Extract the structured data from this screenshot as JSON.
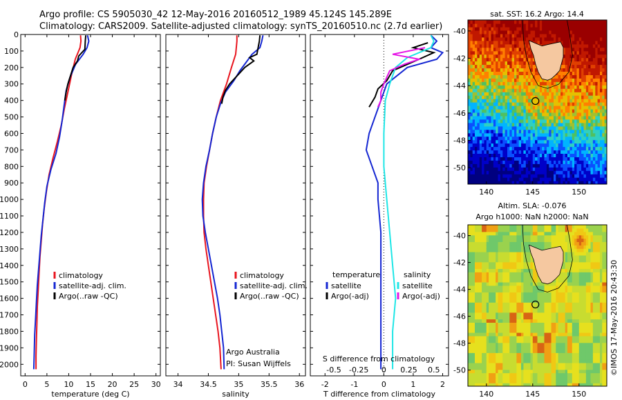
{
  "header": {
    "line1": "Argo profile: CS 5905030_42 12-May-2016 20160512_1989 45.124S 145.289E",
    "line2": "Climatology: CARS2009. Satellite-adjusted climatology: synTS_20160510.nc (2.7d earlier)"
  },
  "side_text": "©IMOS 17-May-2016 20:43:30",
  "colors": {
    "climatology": "#e8141e",
    "satellite": "#1426d2",
    "argo": "#000000",
    "sal_satellite": "#1ee6e6",
    "sal_argo": "#e614e6",
    "land": "#f5c8a0"
  },
  "chart_data": [
    {
      "type": "line",
      "panel": "temperature",
      "xlabel": "temperature (deg C)",
      "xlim": [
        -1,
        31
      ],
      "xticks": [
        0,
        5,
        10,
        15,
        20,
        25,
        30
      ],
      "ylim": [
        2070,
        0
      ],
      "yticks": [
        0,
        100,
        200,
        300,
        400,
        500,
        600,
        700,
        800,
        900,
        1000,
        1100,
        1200,
        1300,
        1400,
        1500,
        1600,
        1700,
        1800,
        1900,
        2000
      ],
      "legend": [
        "climatology",
        "satellite-adj. clim.",
        "Argo(..raw -QC)"
      ],
      "series": [
        {
          "name": "climatology",
          "color": "climatology",
          "points": [
            [
              12.7,
              5
            ],
            [
              12.8,
              40
            ],
            [
              12.6,
              80
            ],
            [
              11.5,
              150
            ],
            [
              10.6,
              250
            ],
            [
              9.8,
              350
            ],
            [
              9.0,
              450
            ],
            [
              8.3,
              550
            ],
            [
              7.4,
              650
            ],
            [
              6.4,
              750
            ],
            [
              5.5,
              850
            ],
            [
              4.9,
              950
            ],
            [
              4.4,
              1050
            ],
            [
              4.0,
              1150
            ],
            [
              3.7,
              1250
            ],
            [
              3.4,
              1350
            ],
            [
              3.2,
              1450
            ],
            [
              3.0,
              1550
            ],
            [
              2.8,
              1650
            ],
            [
              2.7,
              1750
            ],
            [
              2.6,
              1850
            ],
            [
              2.5,
              1950
            ],
            [
              2.5,
              2030
            ]
          ]
        },
        {
          "name": "satellite",
          "color": "satellite",
          "points": [
            [
              14.3,
              5
            ],
            [
              14.6,
              40
            ],
            [
              14.2,
              80
            ],
            [
              13.3,
              120
            ],
            [
              11.6,
              180
            ],
            [
              10.3,
              260
            ],
            [
              9.4,
              340
            ],
            [
              9.0,
              420
            ],
            [
              8.5,
              520
            ],
            [
              7.9,
              620
            ],
            [
              7.1,
              720
            ],
            [
              5.9,
              820
            ],
            [
              5.0,
              920
            ],
            [
              4.5,
              1020
            ],
            [
              4.1,
              1120
            ],
            [
              3.7,
              1220
            ],
            [
              3.4,
              1320
            ],
            [
              3.1,
              1420
            ],
            [
              2.8,
              1520
            ],
            [
              2.6,
              1620
            ],
            [
              2.4,
              1720
            ],
            [
              2.2,
              1820
            ],
            [
              2.1,
              1920
            ],
            [
              2.0,
              2030
            ]
          ]
        },
        {
          "name": "argo",
          "color": "argo",
          "points": [
            [
              13.9,
              5
            ],
            [
              13.8,
              40
            ],
            [
              13.7,
              90
            ],
            [
              12.3,
              130
            ],
            [
              12.0,
              160
            ],
            [
              11.0,
              200
            ],
            [
              10.4,
              250
            ],
            [
              9.8,
              300
            ],
            [
              9.4,
              350
            ],
            [
              9.1,
              400
            ]
          ]
        }
      ]
    },
    {
      "type": "line",
      "panel": "salinity",
      "xlabel": "salinity",
      "xlim": [
        33.8,
        36.1
      ],
      "xticks": [
        34,
        34.5,
        35,
        35.5,
        36
      ],
      "ylim": [
        2070,
        0
      ],
      "legend": [
        "climatology",
        "satellite-adj. clim.",
        "Argo(..raw -QC)"
      ],
      "annotation": [
        "Argo Australia",
        "PI: Susan Wijffels"
      ],
      "series": [
        {
          "name": "climatology",
          "color": "climatology",
          "points": [
            [
              34.97,
              5
            ],
            [
              34.97,
              40
            ],
            [
              34.96,
              80
            ],
            [
              34.95,
              120
            ],
            [
              34.88,
              200
            ],
            [
              34.8,
              300
            ],
            [
              34.7,
              400
            ],
            [
              34.63,
              500
            ],
            [
              34.57,
              600
            ],
            [
              34.52,
              700
            ],
            [
              34.47,
              800
            ],
            [
              34.43,
              900
            ],
            [
              34.42,
              1000
            ],
            [
              34.42,
              1100
            ],
            [
              34.43,
              1200
            ],
            [
              34.46,
              1300
            ],
            [
              34.5,
              1400
            ],
            [
              34.54,
              1500
            ],
            [
              34.58,
              1600
            ],
            [
              34.62,
              1700
            ],
            [
              34.66,
              1800
            ],
            [
              34.69,
              1900
            ],
            [
              34.71,
              2030
            ]
          ]
        },
        {
          "name": "satellite",
          "color": "satellite",
          "points": [
            [
              35.4,
              5
            ],
            [
              35.38,
              40
            ],
            [
              35.35,
              80
            ],
            [
              35.22,
              120
            ],
            [
              35.1,
              180
            ],
            [
              35.02,
              220
            ],
            [
              34.92,
              280
            ],
            [
              34.78,
              350
            ],
            [
              34.7,
              420
            ],
            [
              34.63,
              500
            ],
            [
              34.57,
              600
            ],
            [
              34.52,
              700
            ],
            [
              34.46,
              800
            ],
            [
              34.42,
              900
            ],
            [
              34.4,
              1000
            ],
            [
              34.41,
              1100
            ],
            [
              34.45,
              1200
            ],
            [
              34.5,
              1300
            ],
            [
              34.55,
              1400
            ],
            [
              34.6,
              1500
            ],
            [
              34.65,
              1600
            ],
            [
              34.69,
              1700
            ],
            [
              34.72,
              1800
            ],
            [
              34.75,
              1900
            ],
            [
              34.76,
              2030
            ]
          ]
        },
        {
          "name": "argo",
          "color": "argo",
          "points": [
            [
              35.35,
              5
            ],
            [
              35.34,
              40
            ],
            [
              35.32,
              80
            ],
            [
              35.3,
              120
            ],
            [
              35.18,
              140
            ],
            [
              35.25,
              160
            ],
            [
              35.1,
              200
            ],
            [
              34.95,
              260
            ],
            [
              34.85,
              300
            ],
            [
              34.78,
              340
            ],
            [
              34.74,
              380
            ],
            [
              34.72,
              420
            ]
          ]
        }
      ]
    },
    {
      "type": "line",
      "panel": "difference",
      "xlabel": "T difference from climatology",
      "xlabel_top": "S difference from climatology",
      "xlim": [
        -2.5,
        2.2
      ],
      "xticks": [
        -2,
        -1,
        0,
        1,
        2
      ],
      "sticks": [
        -0.5,
        -0.25,
        0,
        0.25,
        0.5
      ],
      "ylim": [
        2070,
        0
      ],
      "legend_left_title": "temperature",
      "legend_left": [
        "satellite",
        "Argo(-adj)"
      ],
      "legend_right_title": "salinity",
      "legend_right": [
        "satellite",
        "Argo(-adj)"
      ],
      "series": [
        {
          "name": "T satellite",
          "color": "satellite",
          "points": [
            [
              1.6,
              5
            ],
            [
              1.8,
              40
            ],
            [
              1.6,
              80
            ],
            [
              2.0,
              110
            ],
            [
              1.8,
              150
            ],
            [
              0.8,
              200
            ],
            [
              0.1,
              300
            ],
            [
              -0.1,
              400
            ],
            [
              -0.3,
              500
            ],
            [
              -0.5,
              600
            ],
            [
              -0.6,
              700
            ],
            [
              -0.4,
              800
            ],
            [
              -0.2,
              900
            ],
            [
              -0.2,
              1000
            ],
            [
              -0.1,
              1200
            ],
            [
              -0.1,
              1400
            ],
            [
              -0.1,
              1600
            ],
            [
              -0.1,
              1800
            ],
            [
              -0.1,
              2030
            ]
          ]
        },
        {
          "name": "T Argo",
          "color": "argo",
          "points": [
            [
              1.5,
              50
            ],
            [
              1.0,
              80
            ],
            [
              1.7,
              110
            ],
            [
              1.2,
              150
            ],
            [
              0.3,
              220
            ],
            [
              0.1,
              280
            ],
            [
              -0.2,
              330
            ],
            [
              -0.3,
              380
            ],
            [
              -0.5,
              440
            ]
          ]
        },
        {
          "name": "S satellite",
          "color": "sal_satellite",
          "points": [
            [
              1.6,
              5
            ],
            [
              1.7,
              40
            ],
            [
              1.6,
              80
            ],
            [
              0.8,
              140
            ],
            [
              0.4,
              200
            ],
            [
              0.2,
              300
            ],
            [
              0.05,
              400
            ],
            [
              0.0,
              600
            ],
            [
              0.0,
              800
            ],
            [
              0.1,
              1000
            ],
            [
              0.2,
              1200
            ],
            [
              0.3,
              1400
            ],
            [
              0.4,
              1600
            ],
            [
              0.3,
              1800
            ],
            [
              0.3,
              2030
            ]
          ]
        },
        {
          "name": "S Argo",
          "color": "sal_argo",
          "points": [
            [
              1.4,
              80
            ],
            [
              0.3,
              120
            ],
            [
              1.2,
              150
            ],
            [
              0.7,
              180
            ],
            [
              0.2,
              220
            ],
            [
              0.1,
              260
            ],
            [
              0.0,
              300
            ],
            [
              -0.1,
              350
            ],
            [
              -0.1,
              400
            ],
            [
              -0.2,
              440
            ]
          ]
        }
      ]
    },
    {
      "type": "heatmap",
      "panel": "sst-map",
      "title": "sat. SST: 16.2 Argo: 14.4",
      "xlim": [
        138,
        153
      ],
      "ylim": [
        -51.2,
        -39.2
      ],
      "xticks": [
        140,
        145,
        150
      ],
      "yticks": [
        -40,
        -42,
        -44,
        -46,
        -48,
        -50
      ],
      "argo_location": [
        145.289,
        -45.124
      ]
    },
    {
      "type": "heatmap",
      "panel": "sla-map",
      "title": [
        "Altim. SLA: -0.076",
        "Argo h1000: NaN h2000: NaN"
      ],
      "xlim": [
        138,
        153
      ],
      "ylim": [
        -51.2,
        -39.2
      ],
      "xticks": [
        140,
        145,
        150
      ],
      "yticks": [
        -40,
        -42,
        -44,
        -46,
        -48,
        -50
      ],
      "argo_location": [
        145.289,
        -45.124
      ]
    }
  ]
}
